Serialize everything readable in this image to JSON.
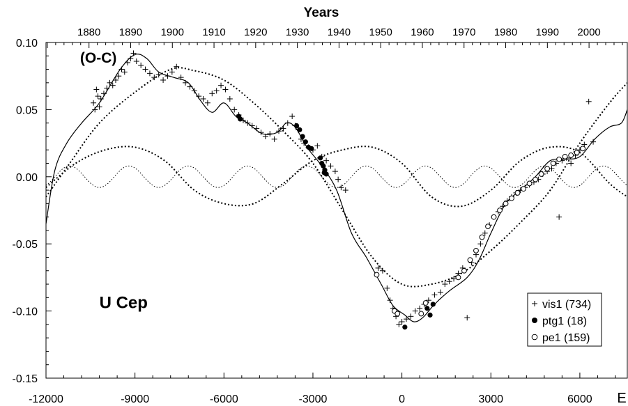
{
  "chart_data": {
    "type": "scatter",
    "title": "U Cep",
    "ylabel": "(O-C)",
    "xlabel": "E",
    "top_axis_title": "Years",
    "xlim": [
      -12000,
      7600
    ],
    "ylim": [
      -0.15,
      0.1
    ],
    "grid": false,
    "legend_position": "bottom-right",
    "x_ticks": [
      -12000,
      -9000,
      -6000,
      -3000,
      0,
      3000,
      6000
    ],
    "x_tick_labels": [
      "-12000",
      "-9000",
      "-6000",
      "-3000",
      "0",
      "3000",
      "6000"
    ],
    "y_ticks": [
      -0.15,
      -0.1,
      -0.05,
      0.0,
      0.05,
      0.1
    ],
    "y_tick_labels": [
      "-0.15",
      "-0.10",
      "-0.05",
      "0.00",
      "0.05",
      "0.10"
    ],
    "top_ticks": [
      {
        "year": "1880",
        "E": -10550
      },
      {
        "year": "1890",
        "E": -9145
      },
      {
        "year": "1900",
        "E": -7740
      },
      {
        "year": "1910",
        "E": -6335
      },
      {
        "year": "1920",
        "E": -4930
      },
      {
        "year": "1930",
        "E": -3525
      },
      {
        "year": "1940",
        "E": -2120
      },
      {
        "year": "1950",
        "E": -715
      },
      {
        "year": "1960",
        "E": 690
      },
      {
        "year": "1970",
        "E": 2095
      },
      {
        "year": "1980",
        "E": 3500
      },
      {
        "year": "1990",
        "E": 4905
      },
      {
        "year": "2000",
        "E": 6310
      }
    ],
    "series": [
      {
        "name": "vis1 (734)",
        "marker": "plus",
        "values": [
          [
            -10400,
            0.055
          ],
          [
            -10350,
            0.05
          ],
          [
            -10300,
            0.065
          ],
          [
            -10250,
            0.06
          ],
          [
            -10200,
            0.052
          ],
          [
            -10150,
            0.058
          ],
          [
            -10050,
            0.062
          ],
          [
            -9950,
            0.066
          ],
          [
            -9850,
            0.07
          ],
          [
            -9750,
            0.068
          ],
          [
            -9650,
            0.072
          ],
          [
            -9550,
            0.075
          ],
          [
            -9450,
            0.08
          ],
          [
            -9350,
            0.078
          ],
          [
            -9250,
            0.085
          ],
          [
            -9150,
            0.088
          ],
          [
            -9050,
            0.092
          ],
          [
            -8950,
            0.086
          ],
          [
            -8800,
            0.083
          ],
          [
            -8650,
            0.08
          ],
          [
            -8500,
            0.077
          ],
          [
            -8350,
            0.074
          ],
          [
            -8200,
            0.076
          ],
          [
            -8050,
            0.072
          ],
          [
            -7900,
            0.075
          ],
          [
            -7750,
            0.078
          ],
          [
            -7600,
            0.082
          ],
          [
            -7450,
            0.074
          ],
          [
            -7300,
            0.07
          ],
          [
            -7150,
            0.067
          ],
          [
            -7000,
            0.064
          ],
          [
            -6850,
            0.06
          ],
          [
            -6700,
            0.058
          ],
          [
            -6550,
            0.055
          ],
          [
            -6400,
            0.062
          ],
          [
            -6250,
            0.064
          ],
          [
            -6100,
            0.068
          ],
          [
            -5950,
            0.065
          ],
          [
            -5800,
            0.058
          ],
          [
            -5650,
            0.05
          ],
          [
            -5500,
            0.046
          ],
          [
            -5350,
            0.042
          ],
          [
            -5200,
            0.04
          ],
          [
            -5050,
            0.038
          ],
          [
            -4900,
            0.036
          ],
          [
            -4750,
            0.033
          ],
          [
            -4600,
            0.03
          ],
          [
            -4450,
            0.032
          ],
          [
            -4300,
            0.028
          ],
          [
            -4150,
            0.034
          ],
          [
            -4000,
            0.036
          ],
          [
            -3850,
            0.04
          ],
          [
            -3700,
            0.045
          ],
          [
            -3600,
            0.038
          ],
          [
            -3500,
            0.035
          ],
          [
            -3400,
            0.028
          ],
          [
            -3300,
            0.025
          ],
          [
            -3150,
            0.022
          ],
          [
            -3000,
            0.02
          ],
          [
            -2850,
            0.023
          ],
          [
            -2700,
            0.015
          ],
          [
            -2550,
            0.012
          ],
          [
            -2400,
            0.008
          ],
          [
            -2250,
            0.004
          ],
          [
            -2150,
            -0.002
          ],
          [
            -2050,
            -0.008
          ],
          [
            -1900,
            -0.01
          ],
          [
            -800,
            -0.068
          ],
          [
            -650,
            -0.07
          ],
          [
            -500,
            -0.083
          ],
          [
            -400,
            -0.092
          ],
          [
            -300,
            -0.098
          ],
          [
            -200,
            -0.104
          ],
          [
            -100,
            -0.11
          ],
          [
            0,
            -0.108
          ],
          [
            150,
            -0.106
          ],
          [
            300,
            -0.104
          ],
          [
            450,
            -0.1
          ],
          [
            600,
            -0.098
          ],
          [
            750,
            -0.095
          ],
          [
            900,
            -0.092
          ],
          [
            1100,
            -0.088
          ],
          [
            1300,
            -0.086
          ],
          [
            1450,
            -0.08
          ],
          [
            1600,
            -0.078
          ],
          [
            1750,
            -0.076
          ],
          [
            1900,
            -0.072
          ],
          [
            2050,
            -0.068
          ],
          [
            2200,
            -0.105
          ],
          [
            2350,
            -0.064
          ],
          [
            2500,
            -0.058
          ],
          [
            2650,
            -0.05
          ],
          [
            2800,
            -0.042
          ],
          [
            2950,
            -0.036
          ],
          [
            3100,
            -0.03
          ],
          [
            3250,
            -0.026
          ],
          [
            3400,
            -0.022
          ],
          [
            3550,
            -0.018
          ],
          [
            3700,
            -0.015
          ],
          [
            3850,
            -0.012
          ],
          [
            4000,
            -0.01
          ],
          [
            4150,
            -0.008
          ],
          [
            4300,
            -0.006
          ],
          [
            4450,
            -0.004
          ],
          [
            4600,
            -0.002
          ],
          [
            4750,
            0.002
          ],
          [
            4900,
            0.004
          ],
          [
            5050,
            0.006
          ],
          [
            5200,
            0.01
          ],
          [
            5300,
            -0.03
          ],
          [
            5400,
            0.012
          ],
          [
            5550,
            0.014
          ],
          [
            5700,
            0.01
          ],
          [
            5850,
            0.016
          ],
          [
            6000,
            0.02
          ],
          [
            6150,
            0.024
          ],
          [
            6300,
            0.056
          ],
          [
            6450,
            0.026
          ]
        ]
      },
      {
        "name": "ptg1 (18)",
        "marker": "filled-circle",
        "values": [
          [
            -5500,
            0.045
          ],
          [
            -5450,
            0.043
          ],
          [
            -3550,
            0.038
          ],
          [
            -3450,
            0.035
          ],
          [
            -3350,
            0.03
          ],
          [
            -3150,
            0.022
          ],
          [
            -3050,
            0.021
          ],
          [
            -2750,
            0.014
          ],
          [
            -2700,
            0.01
          ],
          [
            -2650,
            0.008
          ],
          [
            -2600,
            0.005
          ],
          [
            -2550,
            0.002
          ],
          [
            100,
            -0.112
          ],
          [
            850,
            -0.098
          ],
          [
            950,
            -0.103
          ],
          [
            1050,
            -0.095
          ],
          [
            -2620,
            0.003
          ],
          [
            -3250,
            0.026
          ]
        ]
      },
      {
        "name": "pe1 (159)",
        "marker": "open-circle",
        "values": [
          [
            -850,
            -0.073
          ],
          [
            -250,
            -0.1
          ],
          [
            -150,
            -0.102
          ],
          [
            650,
            -0.102
          ],
          [
            800,
            -0.094
          ],
          [
            1900,
            -0.075
          ],
          [
            2100,
            -0.07
          ],
          [
            2300,
            -0.062
          ],
          [
            2500,
            -0.055
          ],
          [
            2700,
            -0.045
          ],
          [
            2900,
            -0.037
          ],
          [
            3100,
            -0.03
          ],
          [
            3300,
            -0.025
          ],
          [
            3500,
            -0.02
          ],
          [
            3700,
            -0.016
          ],
          [
            3900,
            -0.012
          ],
          [
            4100,
            -0.009
          ],
          [
            4300,
            -0.005
          ],
          [
            4500,
            -0.002
          ],
          [
            4700,
            0.002
          ],
          [
            4900,
            0.006
          ],
          [
            5100,
            0.01
          ],
          [
            5300,
            0.013
          ],
          [
            5500,
            0.015
          ],
          [
            5700,
            0.016
          ],
          [
            5900,
            0.018
          ],
          [
            6100,
            0.021
          ]
        ]
      }
    ],
    "curves": [
      {
        "role": "fit-solid",
        "style": "solid",
        "values": [
          [
            -12000,
            -0.035
          ],
          [
            -11700,
            0.005
          ],
          [
            -11300,
            0.025
          ],
          [
            -10800,
            0.04
          ],
          [
            -10200,
            0.055
          ],
          [
            -9500,
            0.08
          ],
          [
            -9000,
            0.091
          ],
          [
            -8600,
            0.088
          ],
          [
            -8200,
            0.078
          ],
          [
            -7700,
            0.074
          ],
          [
            -7200,
            0.07
          ],
          [
            -6800,
            0.057
          ],
          [
            -6400,
            0.048
          ],
          [
            -6000,
            0.055
          ],
          [
            -5600,
            0.045
          ],
          [
            -5200,
            0.04
          ],
          [
            -4700,
            0.032
          ],
          [
            -4200,
            0.033
          ],
          [
            -3900,
            0.04
          ],
          [
            -3600,
            0.037
          ],
          [
            -3200,
            0.022
          ],
          [
            -2700,
            0.008
          ],
          [
            -2200,
            -0.01
          ],
          [
            -1700,
            -0.042
          ],
          [
            -1200,
            -0.06
          ],
          [
            -700,
            -0.08
          ],
          [
            -300,
            -0.096
          ],
          [
            100,
            -0.103
          ],
          [
            400,
            -0.108
          ],
          [
            700,
            -0.105
          ],
          [
            1100,
            -0.095
          ],
          [
            1600,
            -0.085
          ],
          [
            2200,
            -0.075
          ],
          [
            2600,
            -0.062
          ],
          [
            3000,
            -0.042
          ],
          [
            3500,
            -0.02
          ],
          [
            4000,
            -0.01
          ],
          [
            4500,
            0.0
          ],
          [
            5000,
            0.012
          ],
          [
            5500,
            0.013
          ],
          [
            6000,
            0.015
          ],
          [
            6500,
            0.028
          ],
          [
            7000,
            0.037
          ],
          [
            7400,
            0.04
          ],
          [
            7600,
            0.05
          ]
        ]
      },
      {
        "role": "long-period-wave",
        "style": "dotted",
        "values": [
          [
            -12000,
            -0.015
          ],
          [
            -11200,
            0.01
          ],
          [
            -10200,
            0.04
          ],
          [
            -9000,
            0.063
          ],
          [
            -7800,
            0.08
          ],
          [
            -7000,
            0.079
          ],
          [
            -6000,
            0.072
          ],
          [
            -5000,
            0.055
          ],
          [
            -4000,
            0.034
          ],
          [
            -3000,
            0.01
          ],
          [
            -2000,
            -0.025
          ],
          [
            -1000,
            -0.06
          ],
          [
            0,
            -0.08
          ],
          [
            1000,
            -0.08
          ],
          [
            2000,
            -0.072
          ],
          [
            3000,
            -0.055
          ],
          [
            4000,
            -0.034
          ],
          [
            5000,
            -0.01
          ],
          [
            6000,
            0.025
          ],
          [
            7000,
            0.055
          ],
          [
            7600,
            0.07
          ]
        ]
      },
      {
        "role": "medium-period-wave",
        "style": "dotted",
        "values": [
          [
            -12000,
            -0.008
          ],
          [
            -11000,
            0.01
          ],
          [
            -10000,
            0.02
          ],
          [
            -9000,
            0.022
          ],
          [
            -8000,
            0.012
          ],
          [
            -7000,
            -0.01
          ],
          [
            -6000,
            -0.02
          ],
          [
            -5000,
            -0.02
          ],
          [
            -4000,
            -0.005
          ],
          [
            -3000,
            0.012
          ],
          [
            -2000,
            0.02
          ],
          [
            -1000,
            0.022
          ],
          [
            0,
            0.01
          ],
          [
            1000,
            -0.015
          ],
          [
            2000,
            -0.022
          ],
          [
            3000,
            -0.01
          ],
          [
            4000,
            0.012
          ],
          [
            5000,
            0.022
          ],
          [
            6000,
            0.018
          ],
          [
            7000,
            -0.005
          ],
          [
            7600,
            -0.015
          ]
        ]
      },
      {
        "role": "short-period-wave",
        "style": "dotted-fine",
        "amplitude": 0.008,
        "period_E": 2000,
        "phase_E": -11700
      }
    ],
    "annotations": [
      {
        "text": "(O-C)",
        "E": -10850,
        "value": 0.085
      },
      {
        "text": "U Cep",
        "E": -10200,
        "value": -0.098
      }
    ]
  },
  "legend": {
    "items": [
      {
        "label": "vis1 (734)",
        "marker": "plus"
      },
      {
        "label": "ptg1 (18)",
        "marker": "filled-circle"
      },
      {
        "label": "pe1 (159)",
        "marker": "open-circle"
      }
    ]
  }
}
